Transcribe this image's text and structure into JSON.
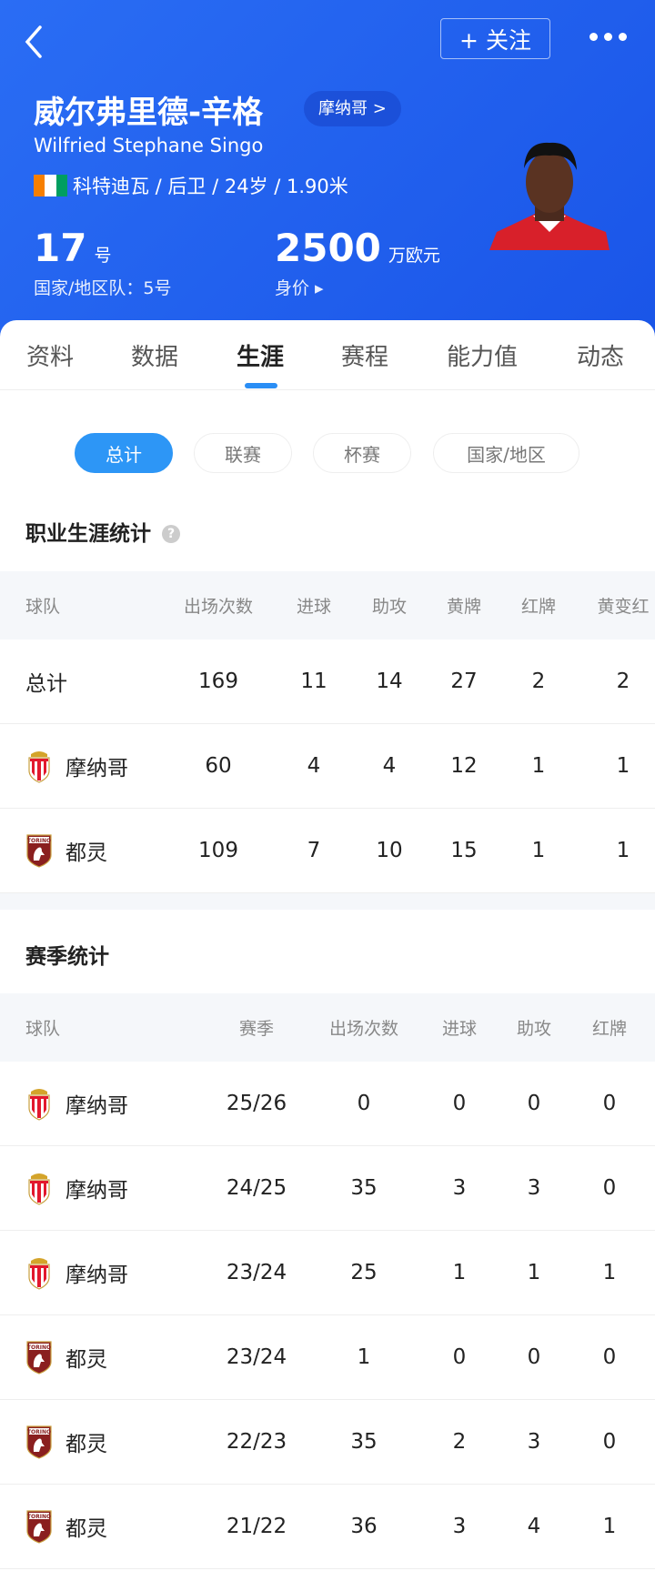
{
  "header": {
    "back_icon": "chevron-left-icon",
    "follow_label": "+ 关注",
    "more_icon": "more-dots-icon",
    "name_cn": "威尔弗里德-辛格",
    "club_label": "摩纳哥 >",
    "name_en": "Wilfried Stephane Singo",
    "flag_colors": [
      "#f77f00",
      "#ffffff",
      "#009e60"
    ],
    "meta": "科特迪瓦 / 后卫 / 24岁 / 1.90米",
    "shirt_number": "17",
    "shirt_unit": "号",
    "national_number": "国家/地区队：5号",
    "market_value": "2500",
    "value_unit": "万欧元",
    "value_label": "身价 ▸"
  },
  "tabs": [
    {
      "label": "资料"
    },
    {
      "label": "数据"
    },
    {
      "label": "生涯",
      "active": true
    },
    {
      "label": "赛程"
    },
    {
      "label": "能力值"
    },
    {
      "label": "动态"
    }
  ],
  "filters": [
    {
      "label": "总计",
      "active": true
    },
    {
      "label": "联赛"
    },
    {
      "label": "杯赛"
    },
    {
      "label": "国家/地区"
    }
  ],
  "career": {
    "title": "职业生涯统计",
    "help_icon": "question-icon",
    "columns": [
      "球队",
      "出场次数",
      "进球",
      "助攻",
      "黄牌",
      "红牌",
      "黄变红"
    ],
    "rows": [
      {
        "team": "总计",
        "crest": "",
        "cells": [
          "169",
          "11",
          "14",
          "27",
          "2",
          "2"
        ]
      },
      {
        "team": "摩纳哥",
        "crest": "monaco",
        "cells": [
          "60",
          "4",
          "4",
          "12",
          "1",
          "1"
        ]
      },
      {
        "team": "都灵",
        "crest": "torino",
        "cells": [
          "109",
          "7",
          "10",
          "15",
          "1",
          "1"
        ]
      }
    ]
  },
  "season": {
    "title": "赛季统计",
    "columns": [
      "球队",
      "赛季",
      "出场次数",
      "进球",
      "助攻",
      "红牌"
    ],
    "rows": [
      {
        "team": "摩纳哥",
        "crest": "monaco",
        "cells": [
          "25/26",
          "0",
          "0",
          "0",
          "0"
        ]
      },
      {
        "team": "摩纳哥",
        "crest": "monaco",
        "cells": [
          "24/25",
          "35",
          "3",
          "3",
          "0"
        ]
      },
      {
        "team": "摩纳哥",
        "crest": "monaco",
        "cells": [
          "23/24",
          "25",
          "1",
          "1",
          "1"
        ]
      },
      {
        "team": "都灵",
        "crest": "torino",
        "cells": [
          "23/24",
          "1",
          "0",
          "0",
          "0"
        ]
      },
      {
        "team": "都灵",
        "crest": "torino",
        "cells": [
          "22/23",
          "35",
          "2",
          "3",
          "0"
        ]
      },
      {
        "team": "都灵",
        "crest": "torino",
        "cells": [
          "21/22",
          "36",
          "3",
          "4",
          "1"
        ]
      }
    ]
  }
}
